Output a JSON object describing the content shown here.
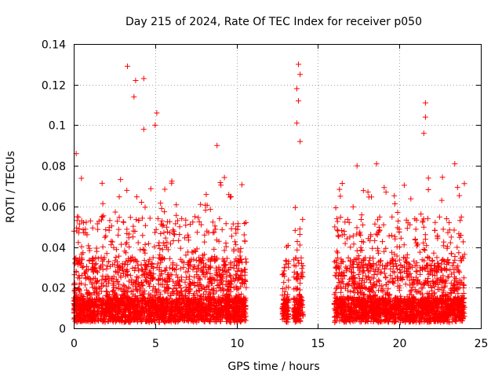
{
  "chart_data": {
    "type": "scatter",
    "title": "Day 215 of 2024, Rate Of TEC Index for receiver p050",
    "xlabel": "GPS time / hours",
    "ylabel": "ROTI / TECUs",
    "xlim": [
      0,
      25
    ],
    "ylim": [
      0,
      0.14
    ],
    "xticks": [
      0,
      5,
      10,
      15,
      20,
      25
    ],
    "xtick_labels": [
      "0",
      "5",
      "10",
      "15",
      "20",
      "25"
    ],
    "yticks": [
      0,
      0.02,
      0.04,
      0.06,
      0.08,
      0.1,
      0.12,
      0.14
    ],
    "ytick_labels": [
      "0",
      "0.02",
      "0.04",
      "0.06",
      "0.08",
      "0.1",
      "0.12",
      "0.14"
    ],
    "grid": true,
    "marker": "+",
    "marker_color": "#ff0000",
    "data_segments": [
      {
        "start": 0.0,
        "end": 10.6
      },
      {
        "start": 12.8,
        "end": 13.2
      },
      {
        "start": 13.5,
        "end": 14.1
      },
      {
        "start": 16.0,
        "end": 24.0
      }
    ],
    "notable_points": [
      {
        "x": 0.15,
        "y": 0.086
      },
      {
        "x": 3.3,
        "y": 0.129
      },
      {
        "x": 3.8,
        "y": 0.122
      },
      {
        "x": 4.3,
        "y": 0.123
      },
      {
        "x": 3.7,
        "y": 0.114
      },
      {
        "x": 5.1,
        "y": 0.106
      },
      {
        "x": 5.0,
        "y": 0.1
      },
      {
        "x": 4.3,
        "y": 0.098
      },
      {
        "x": 8.8,
        "y": 0.09
      },
      {
        "x": 13.8,
        "y": 0.13
      },
      {
        "x": 13.9,
        "y": 0.125
      },
      {
        "x": 13.7,
        "y": 0.118
      },
      {
        "x": 13.8,
        "y": 0.112
      },
      {
        "x": 13.7,
        "y": 0.101
      },
      {
        "x": 13.9,
        "y": 0.092
      },
      {
        "x": 21.6,
        "y": 0.111
      },
      {
        "x": 21.6,
        "y": 0.104
      },
      {
        "x": 21.5,
        "y": 0.096
      },
      {
        "x": 23.4,
        "y": 0.081
      },
      {
        "x": 18.6,
        "y": 0.081
      },
      {
        "x": 17.4,
        "y": 0.08
      }
    ]
  }
}
